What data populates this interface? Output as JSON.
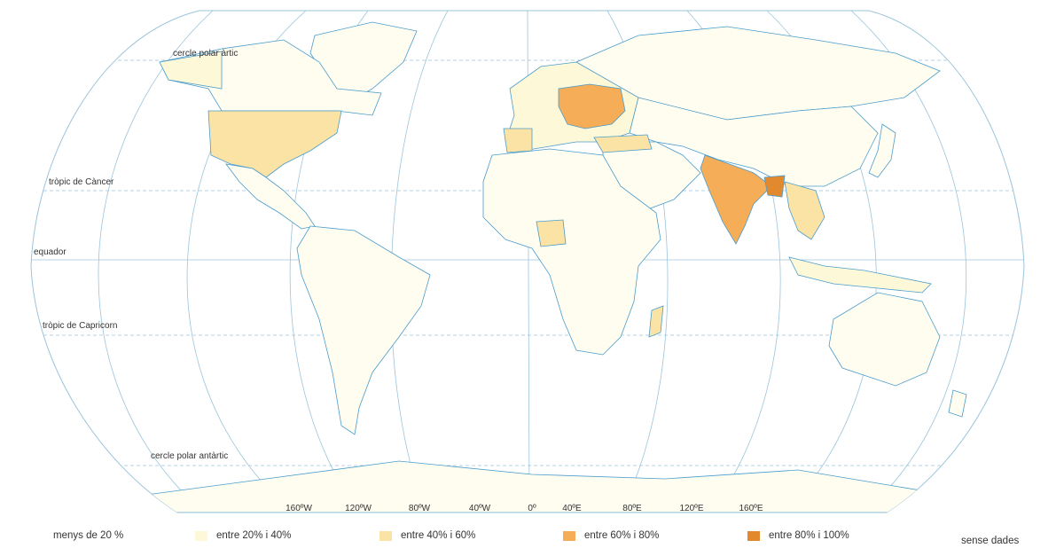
{
  "map": {
    "lines": {
      "arctic": "cercle polar àrtic",
      "cancer": "tròpic de Càncer",
      "equator": "equador",
      "capricorn": "tròpic de Capricorn",
      "antarctic": "cercle polar antàrtic"
    },
    "longitudes": [
      "160ºW",
      "120ºW",
      "80ºW",
      "40ºW",
      "0º",
      "40ºE",
      "80ºE",
      "120ºE",
      "160ºE"
    ],
    "colors": {
      "ocean": "#ffffff",
      "graticule": "#9cc4db",
      "coast": "#4a9ccc",
      "border": "#c9b48a",
      "land_base": "#fffdf0"
    }
  },
  "legend": {
    "items": [
      {
        "label": "menys de 20 %",
        "color": ""
      },
      {
        "label": "entre 20% i 40%",
        "color": "#fdf9d8"
      },
      {
        "label": "entre 40% i 60%",
        "color": "#fbe3a6"
      },
      {
        "label": "entre 60% i 80%",
        "color": "#f5ad57"
      },
      {
        "label": "entre 80% i 100%",
        "color": "#e2892e"
      },
      {
        "label": "sense dades",
        "color": ""
      }
    ]
  }
}
